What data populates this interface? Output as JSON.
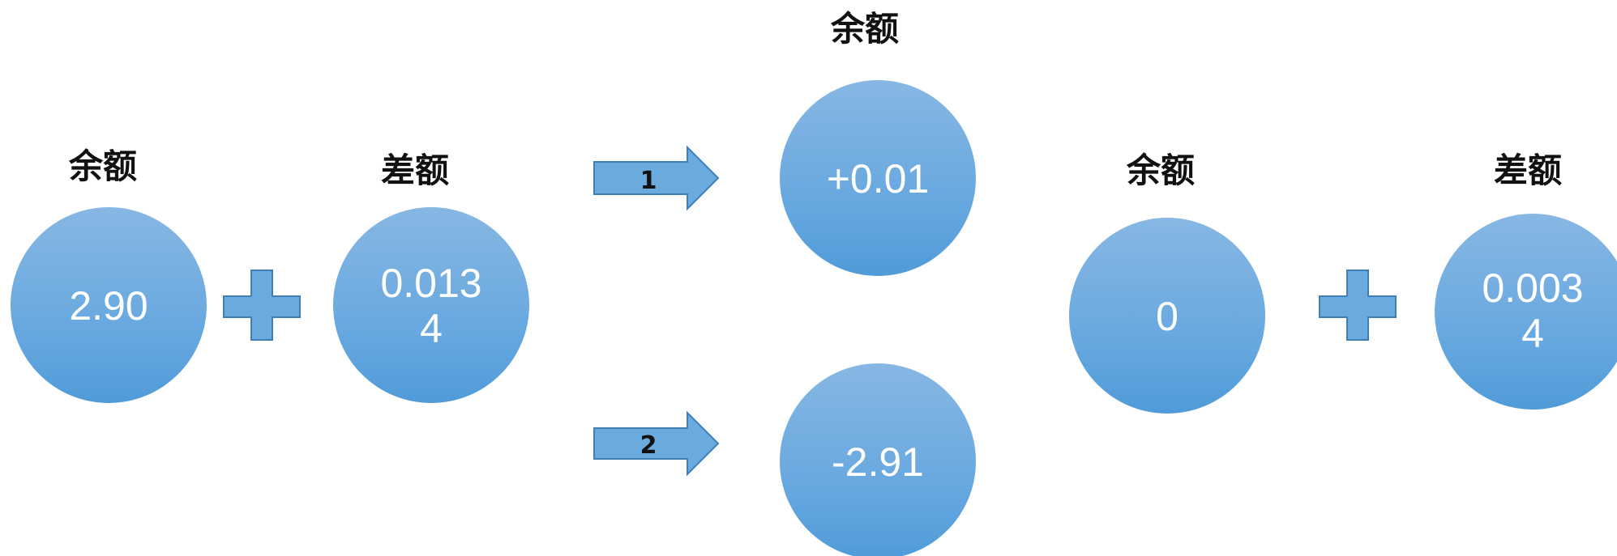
{
  "colors": {
    "circle_top": "#88b7e3",
    "circle_bottom": "#4f9bd8",
    "shape_fill": "#6aaadd",
    "shape_stroke": "#3f7fb8",
    "label_text": "#111111",
    "value_text": "#ffffff"
  },
  "left": {
    "balance_label": "余额",
    "balance_value": "2.90",
    "diff_label": "差额",
    "diff_value_line1": "0.013",
    "diff_value_line2": "4"
  },
  "arrows": {
    "arrow1_label": "1",
    "arrow2_label": "2"
  },
  "middle": {
    "result_label": "余额",
    "result1_value": "+0.01",
    "result2_value": "-2.91"
  },
  "right": {
    "balance_label": "余额",
    "balance_value": "0",
    "diff_label": "差额",
    "diff_value_line1": "0.003",
    "diff_value_line2": "4"
  }
}
